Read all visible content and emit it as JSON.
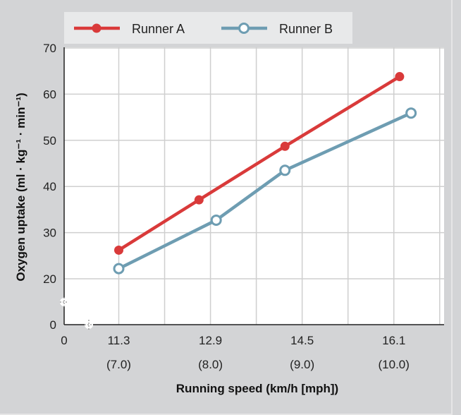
{
  "chart_data": {
    "type": "line",
    "xlabel": "Running speed (km/h [mph])",
    "ylabel": "Oxygen uptake (ml · kg⁻¹ · min⁻¹)",
    "ylim": [
      0,
      70
    ],
    "y_axis_break": "between 0 and 20",
    "x_axis_break": "between 0 and 11.3",
    "grid": true,
    "legend": "top",
    "yticks": [
      "0",
      "20",
      "30",
      "40",
      "50",
      "60",
      "70"
    ],
    "xticks": [
      {
        "value": 0,
        "label": "0",
        "sub": ""
      },
      {
        "value": 11.3,
        "label": "11.3",
        "sub": "(7.0)"
      },
      {
        "value": 12.9,
        "label": "12.9",
        "sub": "(8.0)"
      },
      {
        "value": 14.5,
        "label": "14.5",
        "sub": "(9.0)"
      },
      {
        "value": 16.1,
        "label": "16.1",
        "sub": "(10.0)"
      }
    ],
    "series": [
      {
        "name": "Runner A",
        "color": "#d93a3a",
        "marker": "filled-circle",
        "x": [
          11.3,
          12.7,
          14.2,
          16.2
        ],
        "y": [
          26.2,
          37.1,
          48.7,
          63.8
        ]
      },
      {
        "name": "Runner B",
        "color": "#6e9db2",
        "marker": "open-circle",
        "x": [
          11.3,
          13.0,
          14.2,
          16.4
        ],
        "y": [
          22.2,
          32.7,
          43.5,
          55.9
        ]
      }
    ]
  }
}
